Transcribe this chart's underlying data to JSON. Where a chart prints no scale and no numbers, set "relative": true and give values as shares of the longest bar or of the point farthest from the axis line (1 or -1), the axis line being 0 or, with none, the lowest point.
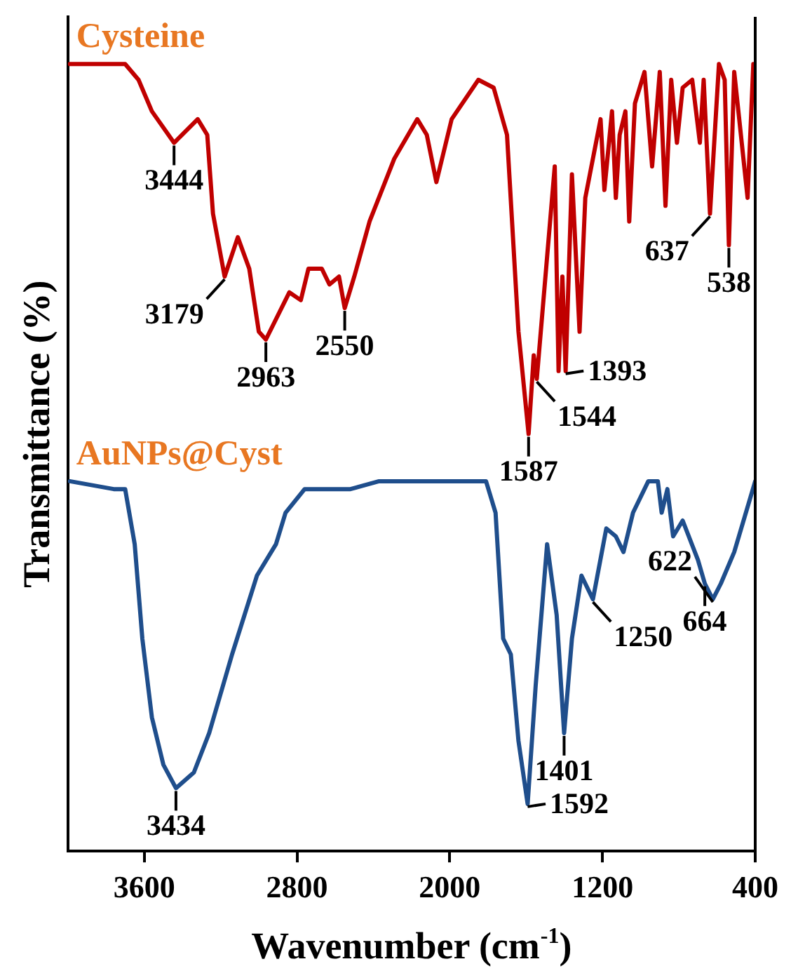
{
  "chart_data": {
    "type": "line",
    "xlabel": "Wavenumber (cm$^{-1}$)",
    "ylabel": "Transmittance (%)",
    "relative": true,
    "xlim": [
      4000,
      400
    ],
    "xticks": [
      3600,
      2800,
      2000,
      1200,
      400
    ],
    "tick_labels": "x",
    "grid": false,
    "legend": false,
    "marker": "none",
    "line_style": "solid",
    "series": [
      {
        "name": "Cysteine",
        "color": "#c00000",
        "x": [
          3990,
          3700,
          3630,
          3560,
          3444,
          3320,
          3270,
          3240,
          3179,
          3110,
          3050,
          3000,
          2963,
          2840,
          2780,
          2740,
          2670,
          2630,
          2580,
          2550,
          2500,
          2420,
          2290,
          2170,
          2120,
          2070,
          1990,
          1850,
          1770,
          1700,
          1640,
          1587,
          1560,
          1544,
          1450,
          1430,
          1410,
          1393,
          1360,
          1320,
          1290,
          1210,
          1190,
          1150,
          1130,
          1110,
          1080,
          1060,
          1030,
          980,
          940,
          900,
          870,
          840,
          810,
          780,
          730,
          690,
          670,
          637,
          590,
          560,
          538,
          510,
          440,
          410
        ],
        "values": [
          1.0,
          1.0,
          0.98,
          0.94,
          0.9,
          0.93,
          0.91,
          0.81,
          0.73,
          0.78,
          0.74,
          0.66,
          0.65,
          0.71,
          0.7,
          0.74,
          0.74,
          0.72,
          0.73,
          0.69,
          0.73,
          0.8,
          0.88,
          0.93,
          0.91,
          0.85,
          0.93,
          0.98,
          0.97,
          0.91,
          0.66,
          0.53,
          0.63,
          0.6,
          0.87,
          0.61,
          0.73,
          0.61,
          0.86,
          0.66,
          0.83,
          0.93,
          0.84,
          0.94,
          0.83,
          0.91,
          0.94,
          0.8,
          0.95,
          0.99,
          0.87,
          0.99,
          0.82,
          0.98,
          0.9,
          0.97,
          0.98,
          0.9,
          0.98,
          0.81,
          1.0,
          0.98,
          0.77,
          0.99,
          0.83,
          1.0
        ]
      },
      {
        "name": "AuNPs@Cyst",
        "color": "#1f4e8c",
        "x": [
          3990,
          3760,
          3700,
          3650,
          3610,
          3560,
          3500,
          3434,
          3340,
          3260,
          3140,
          3010,
          2910,
          2860,
          2760,
          2640,
          2520,
          2370,
          1870,
          1810,
          1760,
          1720,
          1680,
          1640,
          1592,
          1550,
          1490,
          1440,
          1401,
          1360,
          1310,
          1250,
          1180,
          1130,
          1090,
          1040,
          960,
          910,
          890,
          860,
          830,
          780,
          700,
          664,
          622,
          580,
          510,
          400
        ],
        "values": [
          0.47,
          0.46,
          0.46,
          0.39,
          0.27,
          0.17,
          0.11,
          0.08,
          0.1,
          0.15,
          0.25,
          0.35,
          0.39,
          0.43,
          0.46,
          0.46,
          0.46,
          0.47,
          0.47,
          0.47,
          0.43,
          0.27,
          0.25,
          0.14,
          0.06,
          0.21,
          0.39,
          0.3,
          0.15,
          0.27,
          0.35,
          0.32,
          0.41,
          0.4,
          0.38,
          0.43,
          0.47,
          0.47,
          0.43,
          0.46,
          0.4,
          0.42,
          0.37,
          0.34,
          0.32,
          0.34,
          0.38,
          0.47
        ]
      }
    ],
    "annotations": [
      {
        "text": "3444",
        "x": 3444,
        "y": 0.9
      },
      {
        "text": "3179",
        "x": 3179,
        "y": 0.73
      },
      {
        "text": "2963",
        "x": 2963,
        "y": 0.65
      },
      {
        "text": "2550",
        "x": 2550,
        "y": 0.69
      },
      {
        "text": "1587",
        "x": 1587,
        "y": 0.53
      },
      {
        "text": "1544",
        "x": 1544,
        "y": 0.6
      },
      {
        "text": "1393",
        "x": 1393,
        "y": 0.61
      },
      {
        "text": "637",
        "x": 637,
        "y": 0.81
      },
      {
        "text": "538",
        "x": 538,
        "y": 0.77
      },
      {
        "text": "3434",
        "x": 3434,
        "y": 0.08
      },
      {
        "text": "1592",
        "x": 1592,
        "y": 0.06
      },
      {
        "text": "1401",
        "x": 1401,
        "y": 0.15
      },
      {
        "text": "1250",
        "x": 1250,
        "y": 0.32
      },
      {
        "text": "664",
        "x": 664,
        "y": 0.34
      },
      {
        "text": "622",
        "x": 622,
        "y": 0.32
      }
    ]
  }
}
